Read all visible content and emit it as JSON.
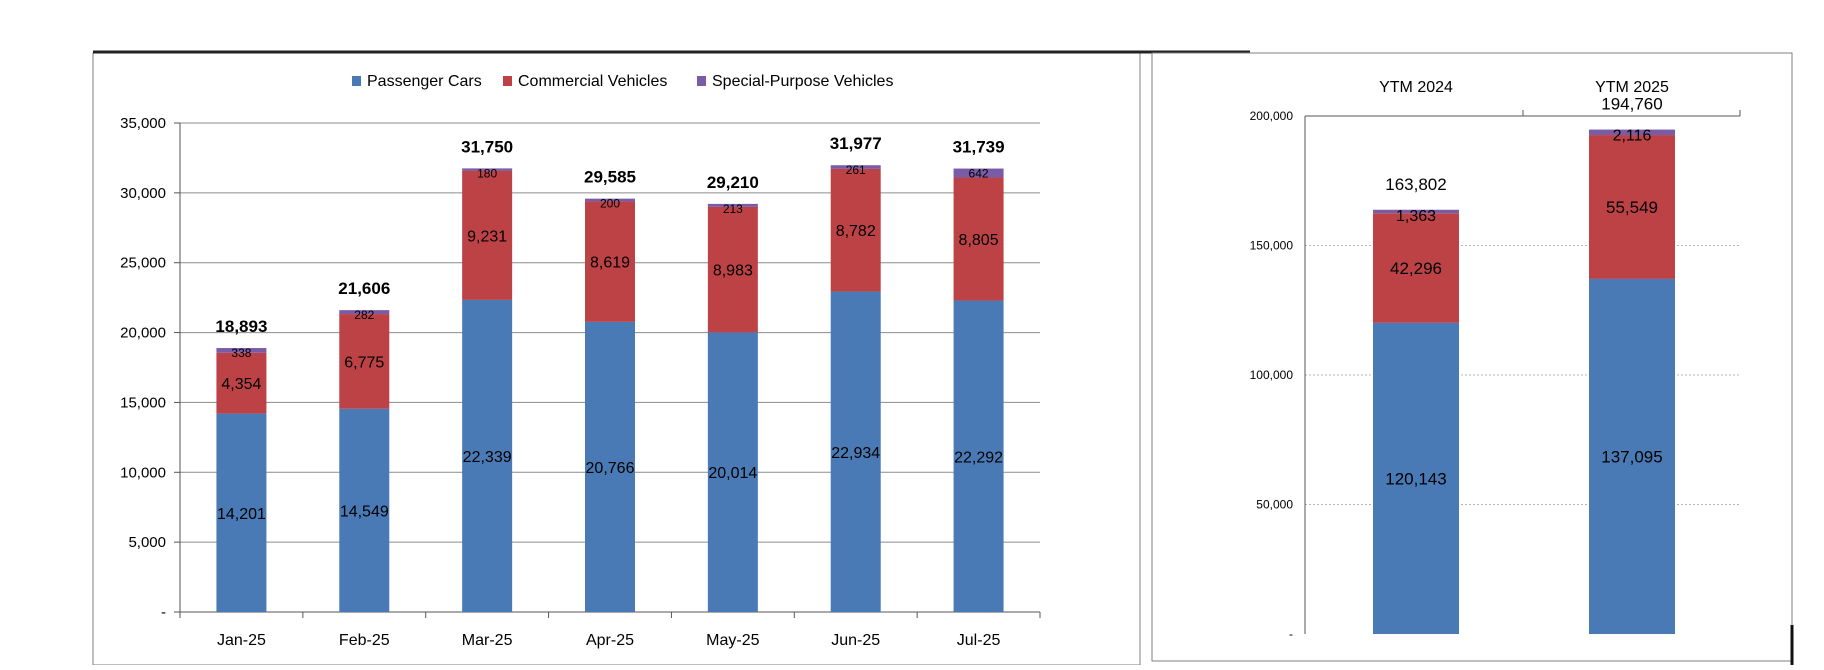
{
  "colors": {
    "passenger": "#4a7ab5",
    "commercial": "#bd4245",
    "special": "#7a5ba6"
  },
  "chart_data": [
    {
      "type": "bar",
      "stacked": true,
      "categories": [
        "Jan-25",
        "Feb-25",
        "Mar-25",
        "Apr-25",
        "May-25",
        "Jun-25",
        "Jul-25"
      ],
      "series": [
        {
          "name": "Passenger Cars",
          "values": [
            14201,
            14549,
            22339,
            20766,
            20014,
            22934,
            22292
          ]
        },
        {
          "name": "Commercial Vehicles",
          "values": [
            4354,
            6775,
            9231,
            8619,
            8983,
            8782,
            8805
          ]
        },
        {
          "name": "Special-Purpose Vehicles",
          "values": [
            338,
            282,
            180,
            200,
            213,
            261,
            642
          ]
        }
      ],
      "data_labels": {
        "Passenger Cars": [
          "14,201",
          "14,549",
          "22,339",
          "20,766",
          "20,014",
          "22,934",
          "22,292"
        ],
        "Commercial Vehicles": [
          "4,354",
          "6,775",
          "9,231",
          "8,619",
          "8,983",
          "8,782",
          "8,805"
        ],
        "Special-Purpose Vehicles": [
          "338",
          "282",
          "180",
          "200",
          "213",
          "261",
          "642"
        ]
      },
      "totals": [
        "18,893",
        "21,606",
        "31,750",
        "29,585",
        "29,210",
        "31,977",
        "31,739"
      ],
      "ylim": [
        0,
        35000
      ],
      "yticks": [
        "-",
        "5,000",
        "10,000",
        "15,000",
        "20,000",
        "25,000",
        "30,000",
        "35,000"
      ],
      "grid": true,
      "legend": "top-center"
    },
    {
      "type": "bar",
      "stacked": true,
      "categories": [
        "YTM 2024",
        "YTM 2025"
      ],
      "series": [
        {
          "name": "Passenger Cars",
          "values": [
            120143,
            137095
          ]
        },
        {
          "name": "Commercial Vehicles",
          "values": [
            42296,
            55549
          ]
        },
        {
          "name": "Special-Purpose Vehicles",
          "values": [
            1363,
            2116
          ]
        }
      ],
      "data_labels": {
        "Passenger Cars": [
          "120,143",
          "137,095"
        ],
        "Commercial Vehicles": [
          "42,296",
          "55,549"
        ],
        "Special-Purpose Vehicles": [
          "1,363",
          "2,116"
        ]
      },
      "totals": [
        "163,802",
        "194,760"
      ],
      "ylim": [
        0,
        200000
      ],
      "yticks": [
        "-",
        "50,000",
        "100,000",
        "150,000",
        "200,000"
      ],
      "grid": true,
      "category_axis": "top"
    }
  ]
}
